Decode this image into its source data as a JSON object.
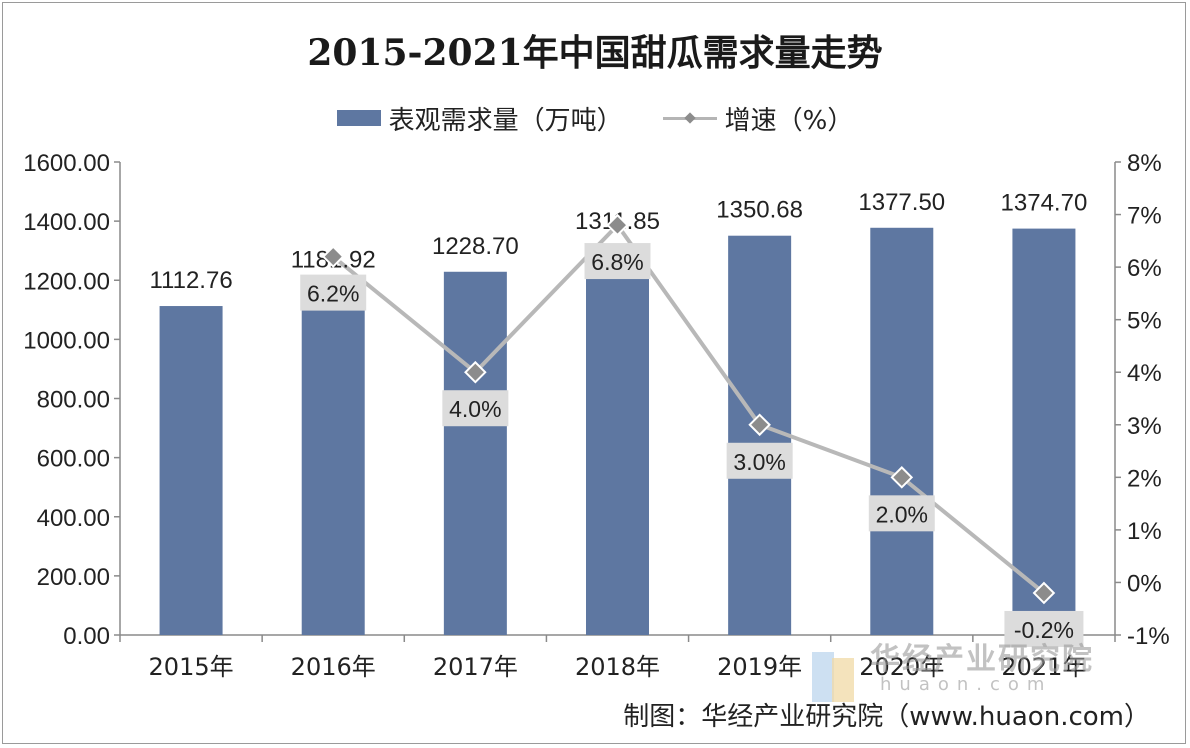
{
  "chart_data": {
    "type": "bar",
    "title": "2015-2021年中国甜瓜需求量走势",
    "categories": [
      "2015年",
      "2016年",
      "2017年",
      "2018年",
      "2019年",
      "2020年",
      "2021年"
    ],
    "series": [
      {
        "name": "表观需求量（万吨）",
        "type": "bar",
        "axis": "left",
        "values": [
          1112.76,
          1181.92,
          1228.7,
          1311.85,
          1350.68,
          1377.5,
          1374.7
        ],
        "labels": [
          "1112.76",
          "1181.92",
          "1228.70",
          "1311.85",
          "1350.68",
          "1377.50",
          "1374.70"
        ]
      },
      {
        "name": "增速（%）",
        "type": "line",
        "axis": "right",
        "values": [
          null,
          6.2,
          4.0,
          6.8,
          3.0,
          2.0,
          -0.2
        ],
        "labels": [
          "",
          "6.2%",
          "4.0%",
          "6.8%",
          "3.0%",
          "2.0%",
          "-0.2%"
        ]
      }
    ],
    "y_left": {
      "ylim": [
        0,
        1600
      ],
      "ticks": [
        "0.00",
        "200.00",
        "400.00",
        "600.00",
        "800.00",
        "1000.00",
        "1200.00",
        "1400.00",
        "1600.00"
      ]
    },
    "y_right": {
      "ylim": [
        -1,
        8
      ],
      "ticks": [
        "-1%",
        "0%",
        "1%",
        "2%",
        "3%",
        "4%",
        "5%",
        "6%",
        "7%",
        "8%"
      ]
    },
    "grid": false,
    "legend": "top-center"
  },
  "colors": {
    "bar": "#5e77a1",
    "line": "#b8b8b8",
    "marker": "#8c8c8c",
    "label_box": "#dcdcdc"
  },
  "footer": {
    "source": "制图：华经产业研究院（www.huaon.com）"
  },
  "watermark": {
    "name": "华经产业研究院",
    "url": "huaon.com"
  }
}
